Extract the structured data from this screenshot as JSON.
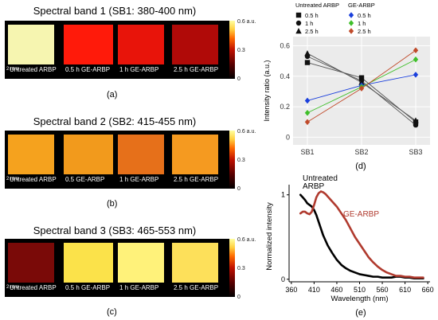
{
  "panels": [
    {
      "title": "Spectral band 1 (SB1: 380-400 nm)",
      "caption": "(a)",
      "scale": "2 mm",
      "samples": [
        "Untreated ARBP",
        "0.5 h  GE-ARBP",
        "1 h GE-ARBP",
        "2.5 h GE-ARBP"
      ],
      "colors": [
        "#f6f5b0",
        "#ff1a0a",
        "#e8140a",
        "#b00a08"
      ]
    },
    {
      "title": "Spectral band 2 (SB2: 415-455 nm)",
      "caption": "(b)",
      "scale": "2 mm",
      "samples": [
        "Untreated ARBP",
        "0.5  GE-ARBP",
        "1 h GE-ARBP",
        "2.5 h GE-ARBP"
      ],
      "colors": [
        "#f5a21e",
        "#f29a1c",
        "#e6701a",
        "#f59a20"
      ]
    },
    {
      "title": "Spectral band 3 (SB3: 465-553 nm)",
      "caption": "(c)",
      "scale": "2 mm",
      "samples": [
        "Untreated ARBP",
        "0.5 h  GE-ARBP",
        "1 h GE-ARBP",
        "2.5 h GE-ARBP"
      ],
      "colors": [
        "#7a0a08",
        "#fbe24a",
        "#fff27a",
        "#fde05a"
      ]
    }
  ],
  "colorbar": {
    "max": "0.6 a.u.",
    "mid": "0.3",
    "min": "0"
  },
  "chart_data": [
    {
      "type": "line",
      "caption": "(d)",
      "categories": [
        "SB1",
        "SB2",
        "SB3"
      ],
      "ylabel": "Intensity ratio (a.u.)",
      "ylim": [
        -0.05,
        0.66
      ],
      "yticks": [
        "0",
        "0.2",
        "0.4",
        "0.6"
      ],
      "legend_groups": [
        "Untreated ARBP",
        "GE-ARBP"
      ],
      "series": [
        {
          "name": "0.5 h",
          "group": "Untreated ARBP",
          "marker": "square",
          "color": "#555555",
          "values": [
            0.49,
            0.39,
            0.1
          ]
        },
        {
          "name": "1 h",
          "group": "Untreated ARBP",
          "marker": "circle",
          "color": "#555555",
          "values": [
            0.53,
            0.37,
            0.08
          ]
        },
        {
          "name": "2.5 h",
          "group": "Untreated ARBP",
          "marker": "triangle",
          "color": "#555555",
          "values": [
            0.55,
            0.36,
            0.11
          ]
        },
        {
          "name": "0.5 h",
          "group": "GE-ARBP",
          "marker": "diamond",
          "color": "#1a3fdc",
          "values": [
            0.24,
            0.34,
            0.41
          ]
        },
        {
          "name": "1 h",
          "group": "GE-ARBP",
          "marker": "diamond",
          "color": "#3fbf2a",
          "values": [
            0.16,
            0.33,
            0.51
          ]
        },
        {
          "name": "2.5 h",
          "group": "GE-ARBP",
          "marker": "diamond",
          "color": "#c04a2a",
          "values": [
            0.1,
            0.32,
            0.57
          ]
        }
      ]
    },
    {
      "type": "line",
      "caption": "(e)",
      "xlabel": "Wavelength (nm)",
      "ylabel": "Normalized intensity",
      "xlim": [
        355,
        665
      ],
      "ylim": [
        -0.03,
        1.12
      ],
      "xticks": [
        360,
        410,
        460,
        510,
        560,
        610,
        660
      ],
      "yticks": [
        0,
        1
      ],
      "series": [
        {
          "name": "Untreated ARBP",
          "label": "Untreated\nARBP",
          "color": "#000000",
          "x": [
            380,
            385,
            390,
            395,
            400,
            405,
            410,
            415,
            420,
            425,
            430,
            440,
            450,
            460,
            470,
            480,
            490,
            500,
            510,
            520,
            530,
            540,
            550,
            560,
            570,
            580,
            590,
            600,
            610,
            620,
            630,
            640,
            650
          ],
          "y": [
            1.0,
            0.97,
            0.94,
            0.9,
            0.88,
            0.86,
            0.82,
            0.76,
            0.68,
            0.6,
            0.52,
            0.4,
            0.31,
            0.23,
            0.17,
            0.13,
            0.1,
            0.08,
            0.06,
            0.05,
            0.04,
            0.03,
            0.03,
            0.02,
            0.02,
            0.02,
            0.03,
            0.03,
            0.02,
            0.02,
            0.01,
            0.01,
            0.01
          ]
        },
        {
          "name": "GE-ARBP",
          "label": "GE-ARBP",
          "color": "#b03a2e",
          "x": [
            380,
            385,
            390,
            395,
            400,
            405,
            410,
            415,
            420,
            425,
            430,
            435,
            440,
            450,
            460,
            470,
            480,
            490,
            500,
            510,
            520,
            530,
            540,
            550,
            560,
            570,
            580,
            590,
            600,
            610,
            620,
            630,
            640,
            650
          ],
          "y": [
            0.78,
            0.8,
            0.8,
            0.78,
            0.77,
            0.8,
            0.88,
            0.97,
            1.02,
            1.04,
            1.03,
            1.01,
            0.98,
            0.92,
            0.86,
            0.78,
            0.7,
            0.6,
            0.5,
            0.42,
            0.34,
            0.26,
            0.2,
            0.15,
            0.11,
            0.08,
            0.06,
            0.04,
            0.04,
            0.03,
            0.03,
            0.02,
            0.02,
            0.02
          ]
        }
      ]
    }
  ]
}
